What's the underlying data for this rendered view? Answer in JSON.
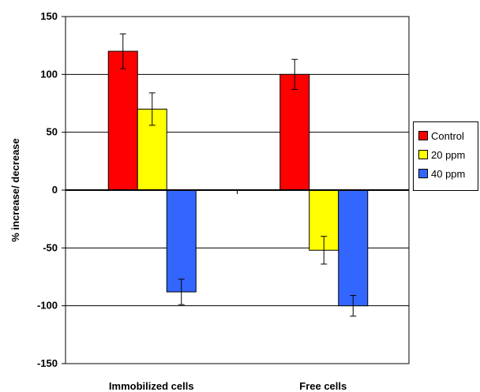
{
  "chart_data": {
    "type": "bar",
    "title": "",
    "xlabel": "",
    "ylabel": "% increase/ decrease",
    "categories": [
      "Immobilized cells",
      "Free cells"
    ],
    "ylim": [
      -150,
      150
    ],
    "yticks": [
      150,
      100,
      50,
      0,
      -50,
      -100,
      -150
    ],
    "grid": true,
    "legend_position": "right",
    "series": [
      {
        "name": "Control",
        "color": "#ff0000",
        "values": [
          120,
          100
        ],
        "errors": [
          15,
          13
        ]
      },
      {
        "name": "20 ppm",
        "color": "#ffff00",
        "values": [
          70,
          -52
        ],
        "errors": [
          14,
          12
        ]
      },
      {
        "name": "40 ppm",
        "color": "#3366ff",
        "values": [
          -88,
          -100
        ],
        "errors": [
          11,
          9
        ]
      }
    ]
  }
}
